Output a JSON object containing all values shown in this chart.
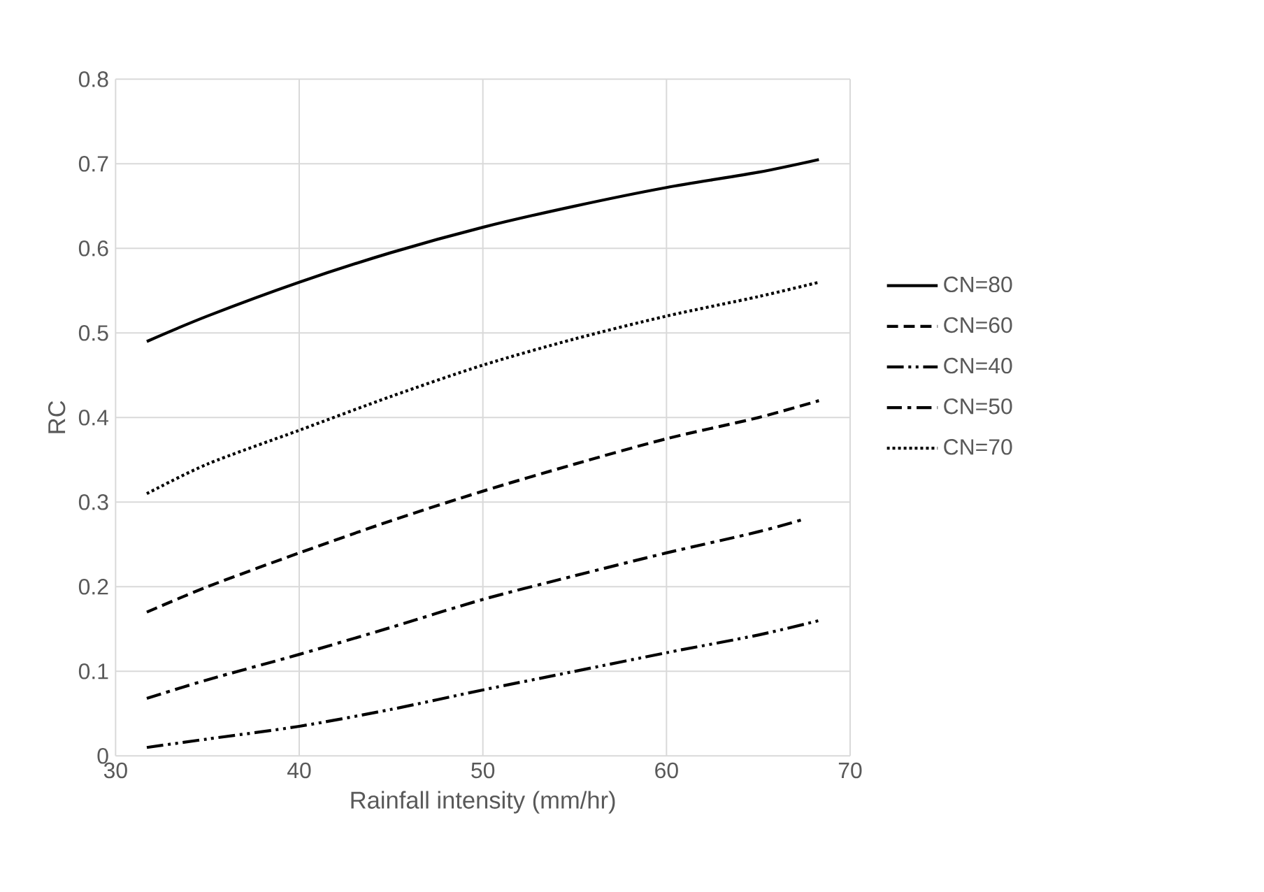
{
  "chart_data": {
    "type": "line",
    "xlabel": "Rainfall intensity (mm/hr)",
    "ylabel": "RC",
    "xlim": [
      30,
      70
    ],
    "xticks": [
      30,
      40,
      50,
      60,
      70
    ],
    "ylim": [
      0,
      0.8
    ],
    "yticks": [
      0,
      0.1,
      0.2,
      0.3,
      0.4,
      0.5,
      0.6,
      0.7,
      0.8
    ],
    "grid": true,
    "legend": "right",
    "marker": "none",
    "series": [
      {
        "name": "CN=80",
        "color": "#000000",
        "line_style": "solid",
        "x": [
          31.7,
          35,
          40,
          45,
          50,
          55,
          60,
          65,
          68.3
        ],
        "values": [
          0.49,
          0.52,
          0.56,
          0.595,
          0.625,
          0.65,
          0.672,
          0.69,
          0.705
        ]
      },
      {
        "name": "CN=60",
        "color": "#000000",
        "line_style": "dashed",
        "x": [
          31.7,
          35,
          40,
          45,
          50,
          55,
          60,
          65,
          68.3
        ],
        "values": [
          0.17,
          0.2,
          0.24,
          0.278,
          0.313,
          0.345,
          0.375,
          0.4,
          0.42
        ]
      },
      {
        "name": "CN=40",
        "color": "#000000",
        "line_style": "dashdotdot",
        "x": [
          31.7,
          35,
          40,
          45,
          50,
          55,
          60,
          65,
          68.3
        ],
        "values": [
          0.01,
          0.02,
          0.035,
          0.055,
          0.078,
          0.1,
          0.122,
          0.143,
          0.16
        ]
      },
      {
        "name": "CN=50",
        "color": "#000000",
        "line_style": "dashdot",
        "x": [
          31.7,
          35,
          40,
          45,
          50,
          55,
          60,
          65,
          67.5
        ],
        "values": [
          0.068,
          0.09,
          0.12,
          0.152,
          0.185,
          0.213,
          0.24,
          0.265,
          0.28
        ]
      },
      {
        "name": "CN=70",
        "color": "#000000",
        "line_style": "dotted",
        "x": [
          31.7,
          35,
          40,
          45,
          50,
          55,
          60,
          65,
          68.3
        ],
        "values": [
          0.31,
          0.345,
          0.385,
          0.425,
          0.462,
          0.493,
          0.52,
          0.543,
          0.56
        ]
      }
    ]
  }
}
